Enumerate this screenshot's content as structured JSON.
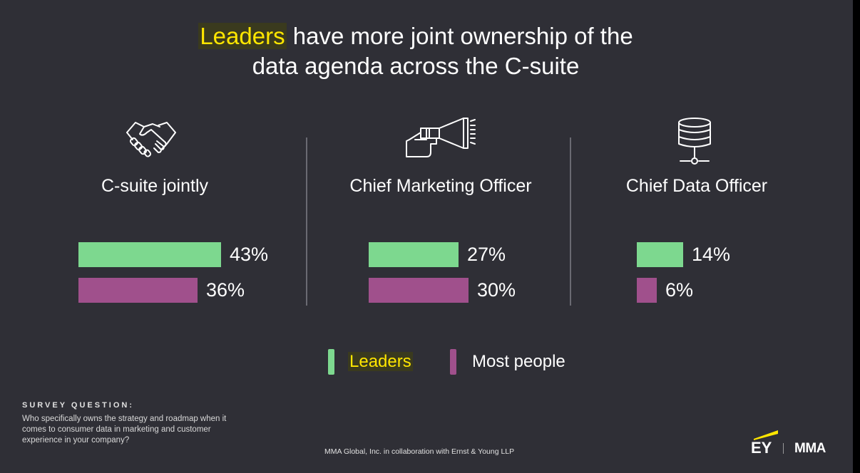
{
  "title": {
    "highlight": "Leaders",
    "line1_rest": " have more joint ownership of the",
    "line2": "data agenda across the C-suite"
  },
  "colors": {
    "background": "#2f2f36",
    "leaders": "#7dd88f",
    "most_people": "#a0508c",
    "highlight": "#ffe600"
  },
  "chart_data": {
    "type": "bar",
    "orientation": "horizontal",
    "categories": [
      "C-suite jointly",
      "Chief Marketing Officer",
      "Chief Data Officer"
    ],
    "series": [
      {
        "name": "Leaders",
        "values": [
          43,
          27,
          14
        ],
        "labels": [
          "43%",
          "27%",
          "14%"
        ]
      },
      {
        "name": "Most people",
        "values": [
          36,
          30,
          6
        ],
        "labels": [
          "36%",
          "30%",
          "6%"
        ]
      }
    ],
    "title": "Leaders have more joint ownership of the data agenda across the C-suite",
    "legend": "bottom-center"
  },
  "icons": [
    "handshake-icon",
    "megaphone-icon",
    "database-icon"
  ],
  "legend": {
    "leaders": "Leaders",
    "most_people": "Most people"
  },
  "survey": {
    "heading": "SURVEY QUESTION:",
    "question": "Who specifically owns the strategy and roadmap when it comes to consumer data in marketing and customer experience in your company?"
  },
  "footer": "MMA Global, Inc. in collaboration with Ernst & Young LLP",
  "logos": {
    "ey": "EY",
    "mma": "MMA"
  }
}
